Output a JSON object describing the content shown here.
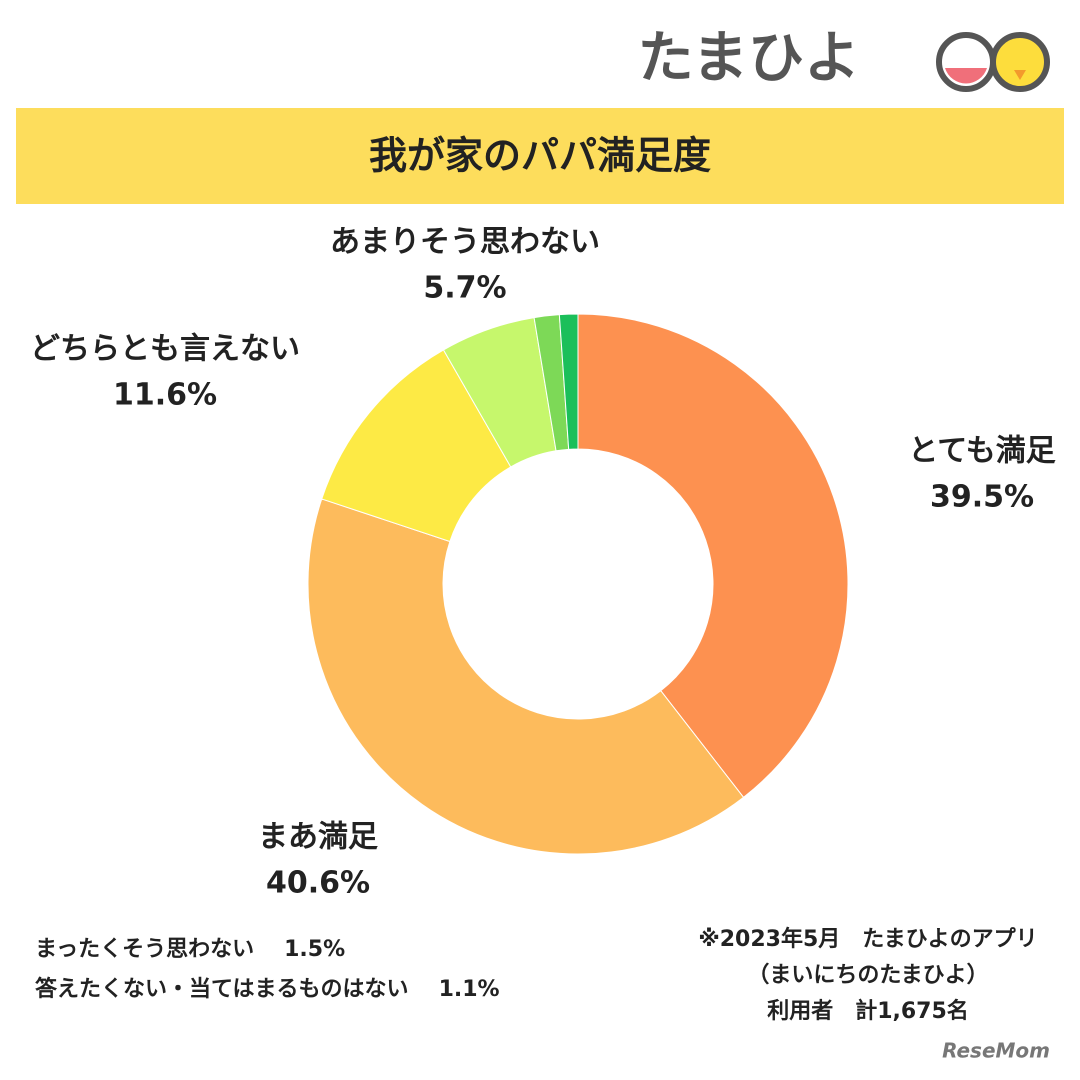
{
  "brand": "たまひよ",
  "watermark": "ReseMom",
  "chart_data": {
    "type": "donut",
    "title": "我が家のパパ満足度",
    "categories": [
      "とても満足",
      "まあ満足",
      "どちらとも言えない",
      "あまりそう思わない",
      "まったくそう思わない",
      "答えたくない・当てはまるものはない"
    ],
    "values": [
      39.5,
      40.6,
      11.6,
      5.7,
      1.5,
      1.1
    ],
    "value_labels": [
      "39.5%",
      "40.6%",
      "11.6%",
      "5.7%",
      "1.5%",
      "1.1%"
    ],
    "colors": [
      "#fd9150",
      "#fdbb5c",
      "#fdea45",
      "#c6f76c",
      "#7dd957",
      "#1bbf5a"
    ],
    "note": [
      "※2023年5月　たまひよのアプリ",
      "（まいにちのたまひよ）",
      "利用者　計1,675名"
    ]
  }
}
